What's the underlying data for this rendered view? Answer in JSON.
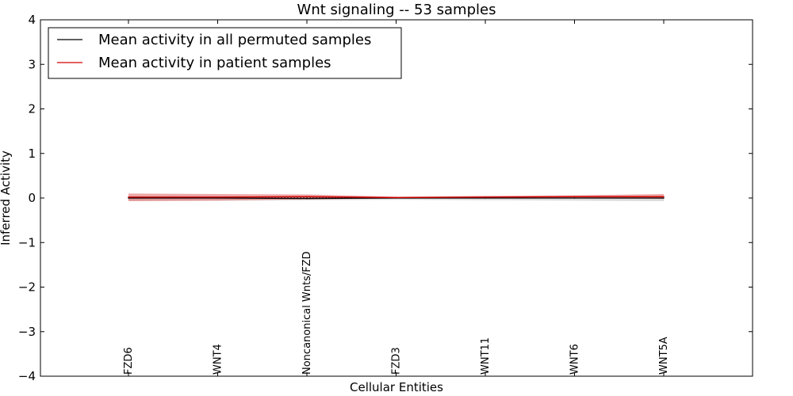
{
  "chart_data": {
    "type": "line",
    "title": "Wnt signaling -- 53 samples",
    "xlabel": "Cellular Entities",
    "ylabel": "Inferred Activity",
    "ylim": [
      -4,
      4
    ],
    "yticks": [
      4,
      3,
      2,
      1,
      0,
      -1,
      -2,
      -3,
      -4
    ],
    "ytick_labels": [
      "4",
      "3",
      "2",
      "1",
      "0",
      "−1",
      "−2",
      "−3",
      "−4"
    ],
    "categories": [
      "FZD6",
      "WNT4",
      "Noncanonical Wnts/FZD",
      "FZD3",
      "WNT11",
      "WNT6",
      "WNT5A"
    ],
    "grid": false,
    "legend_position": "top-left",
    "series": [
      {
        "name": "Mean activity in all permuted samples",
        "color": "#000000",
        "values": [
          0.0,
          0.0,
          -0.01,
          0.0,
          0.0,
          0.0,
          0.0
        ],
        "band_lower": [
          -0.06,
          -0.06,
          -0.05,
          -0.04,
          -0.05,
          -0.06,
          -0.07
        ],
        "band_upper": [
          0.04,
          0.04,
          0.03,
          0.02,
          0.02,
          0.02,
          0.02
        ],
        "band_color": "#b0b0b0"
      },
      {
        "name": "Mean activity in patient samples",
        "color": "#d40000",
        "values": [
          0.02,
          0.02,
          0.03,
          0.01,
          0.02,
          0.03,
          0.03
        ],
        "band_lower": [
          -0.07,
          -0.06,
          -0.03,
          -0.01,
          -0.01,
          -0.01,
          -0.02
        ],
        "band_upper": [
          0.1,
          0.09,
          0.08,
          0.03,
          0.05,
          0.06,
          0.09
        ],
        "band_color": "#e06060"
      }
    ],
    "reference_line": 0
  }
}
